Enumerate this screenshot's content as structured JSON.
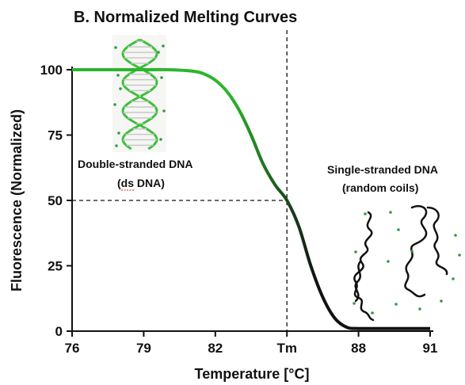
{
  "chart_data": {
    "type": "line",
    "title": "B.   Normalized Melting Curves",
    "xlabel": "Temperature  [°C]",
    "ylabel": "Fluorescence (Normalized)",
    "xlim": [
      76,
      91
    ],
    "ylim": [
      0,
      100
    ],
    "xticks": [
      {
        "value": 76,
        "label": "76"
      },
      {
        "value": 79,
        "label": "79"
      },
      {
        "value": 82,
        "label": "82"
      },
      {
        "value": 85,
        "label": "Tm"
      },
      {
        "value": 88,
        "label": "88"
      },
      {
        "value": 91,
        "label": "91"
      }
    ],
    "yticks": [
      {
        "value": 0,
        "label": "0"
      },
      {
        "value": 25,
        "label": "25"
      },
      {
        "value": 50,
        "label": "50"
      },
      {
        "value": 75,
        "label": "75"
      },
      {
        "value": 100,
        "label": "100"
      }
    ],
    "grid": false,
    "legend": "none",
    "tm": 85,
    "tm_fluorescence": 50,
    "series": [
      {
        "color_start": "#2db52d",
        "color_end": "#111111",
        "x": [
          76,
          77,
          78,
          79,
          80,
          81,
          81.5,
          82,
          82.5,
          83,
          83.5,
          84,
          84.5,
          85,
          85.5,
          86,
          86.5,
          87,
          87.5,
          88,
          89,
          90,
          91
        ],
        "y": [
          100,
          100,
          100,
          100,
          100,
          99.5,
          98.5,
          96,
          91.5,
          84.5,
          75,
          64,
          56,
          50,
          40,
          25,
          13,
          5,
          1.5,
          1,
          1,
          1,
          1
        ]
      }
    ]
  },
  "annotations": {
    "ds_line1": "Double-stranded DNA",
    "ds_line2": "(ds DNA)",
    "ss_line1": "Single-stranded DNA",
    "ss_line2": "(random coils)"
  },
  "colors": {
    "curve_green": "#2db52d",
    "curve_dark": "#111111",
    "helix": "#3cc03c",
    "dots": "#2f9a4a"
  }
}
